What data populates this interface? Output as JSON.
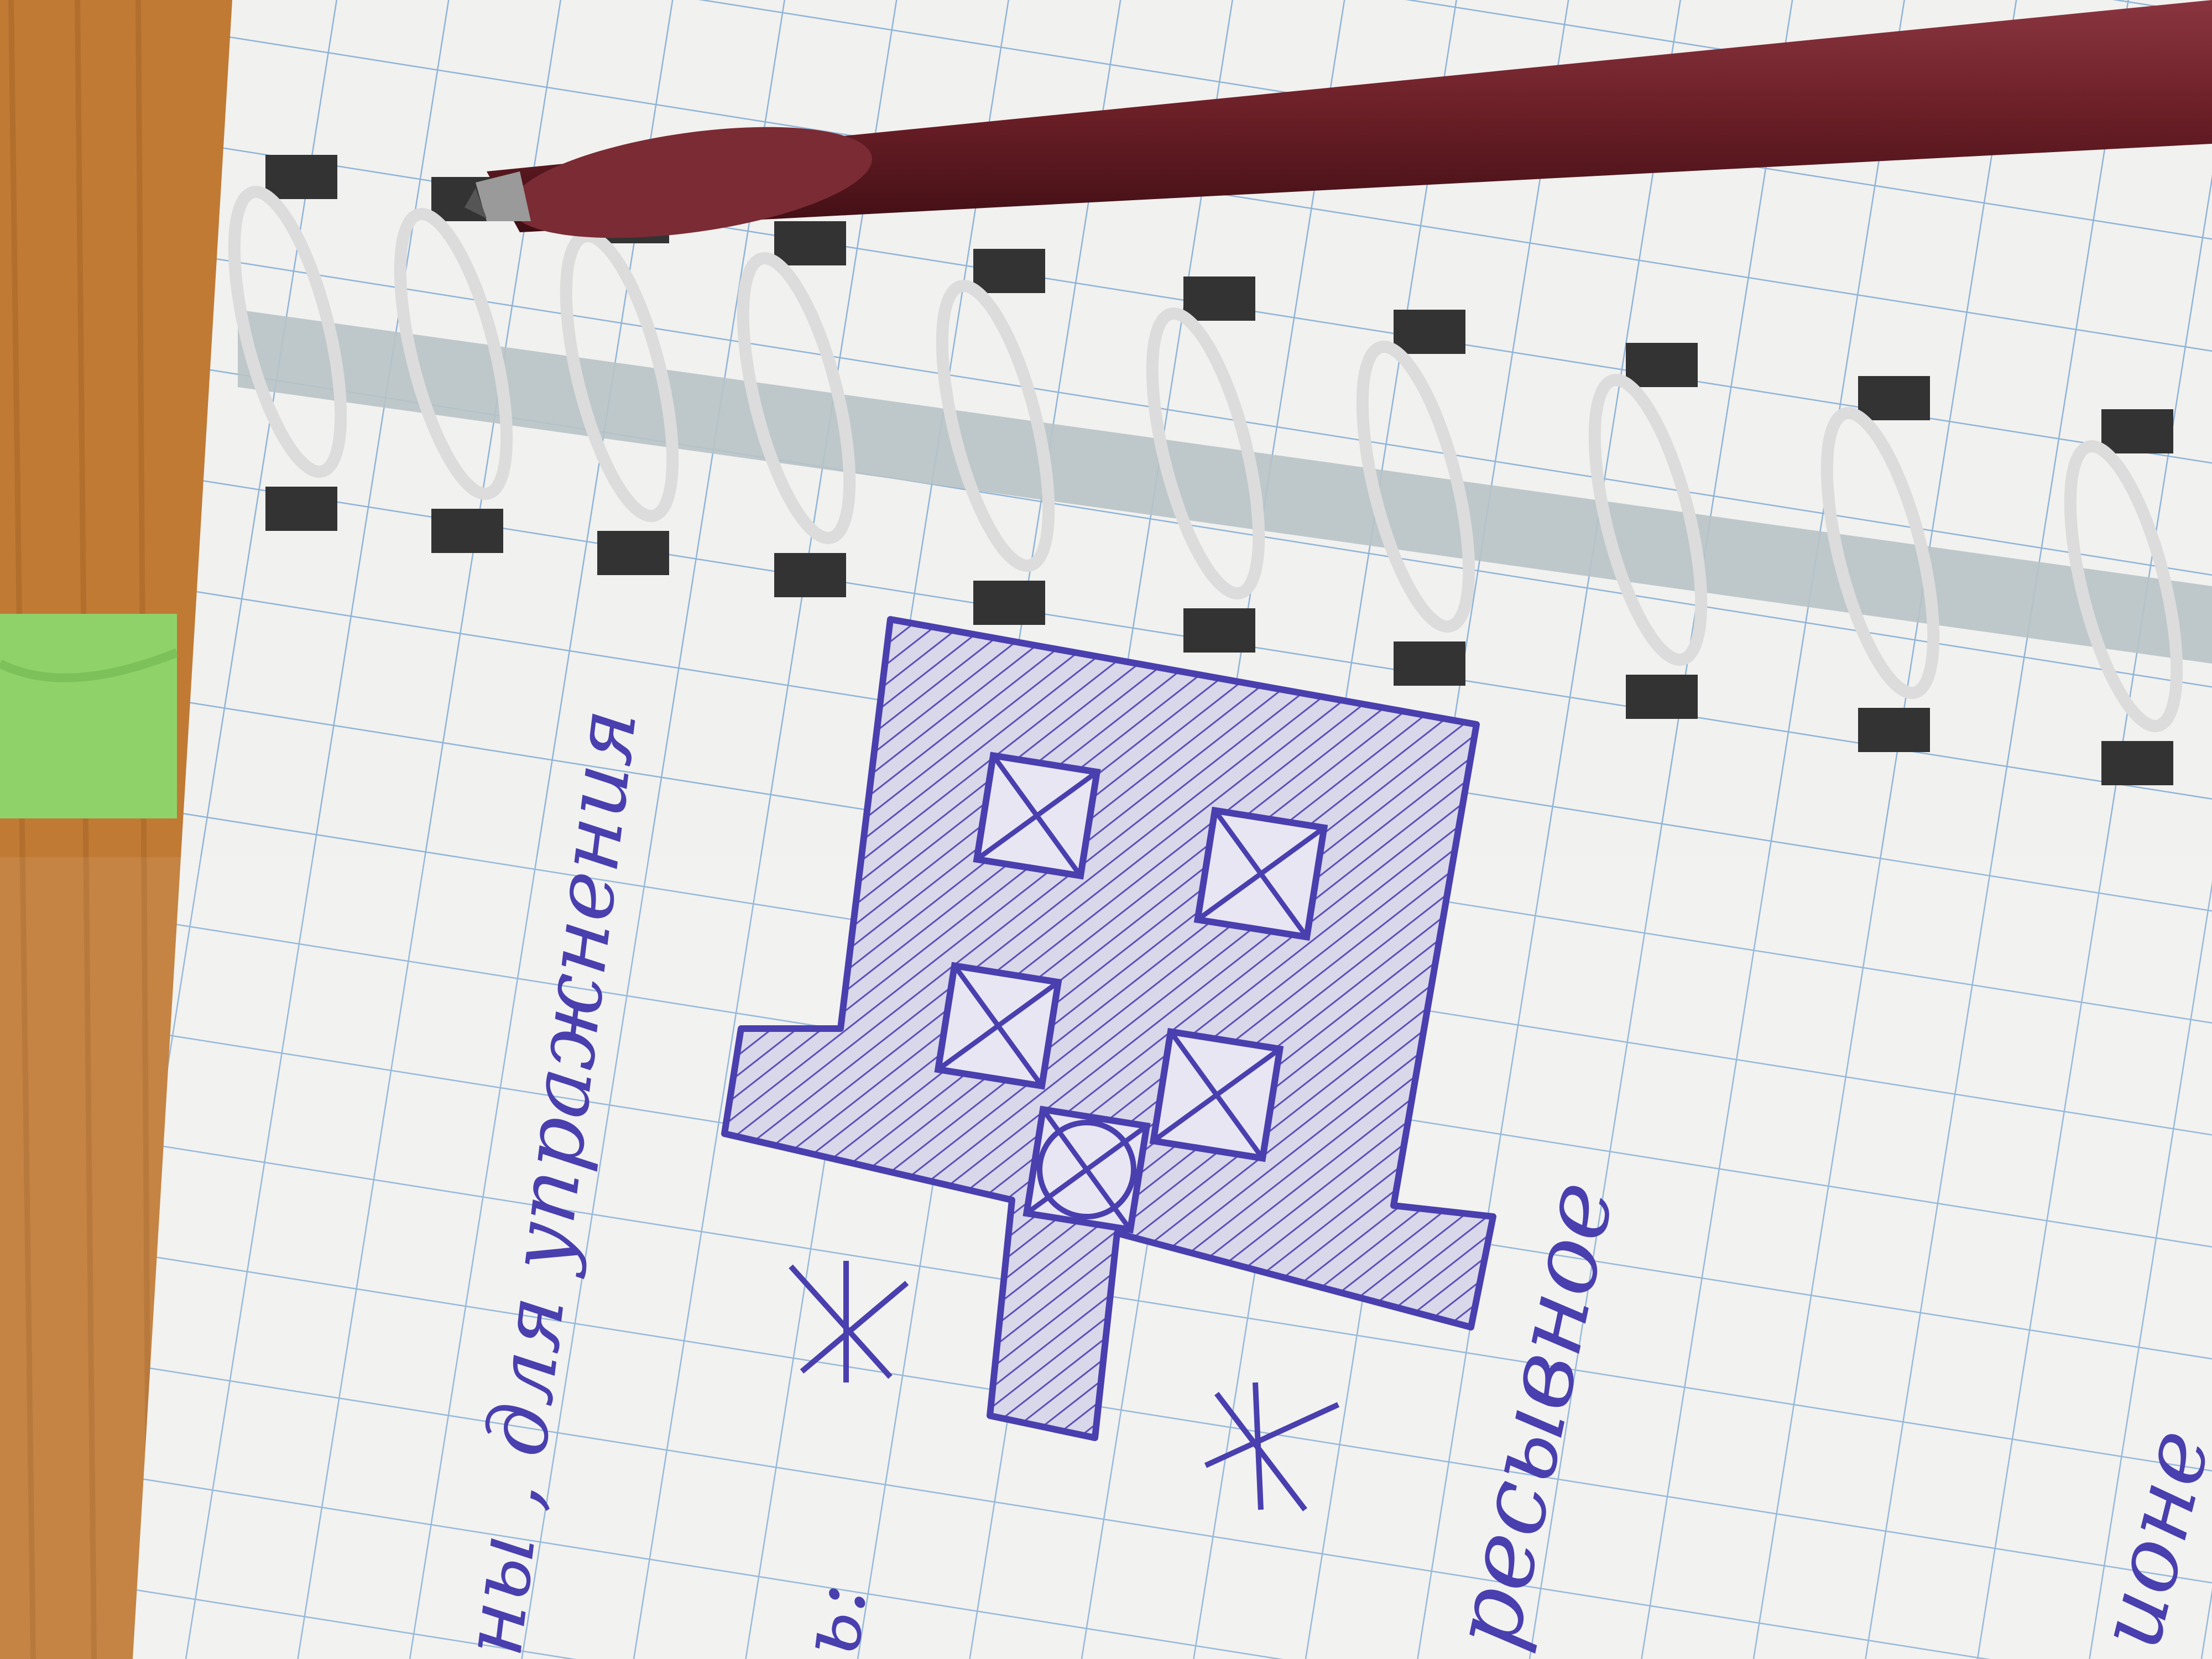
{
  "scene": {
    "description_type": "photo of spiral notebook with pen sketch",
    "colors": {
      "table_wood": "#c07a34",
      "paper": "#f1f1ef",
      "grid_line": "#8fb4d8",
      "ink": "#4a3fae",
      "pen_body": "#6a1e26",
      "spiral_wire": "#dcdcdc",
      "sticky_tab": "#8fd26a"
    }
  },
  "handwriting": {
    "line_1": "ны , для упражнения",
    "line_2": "ь:",
    "line_3": "ресывное",
    "line_4": "ионе"
  },
  "sketch": {
    "hatched_blocks_shown": 1,
    "crossed_squares": 5,
    "circled_square": 1,
    "asterisks": 2
  }
}
